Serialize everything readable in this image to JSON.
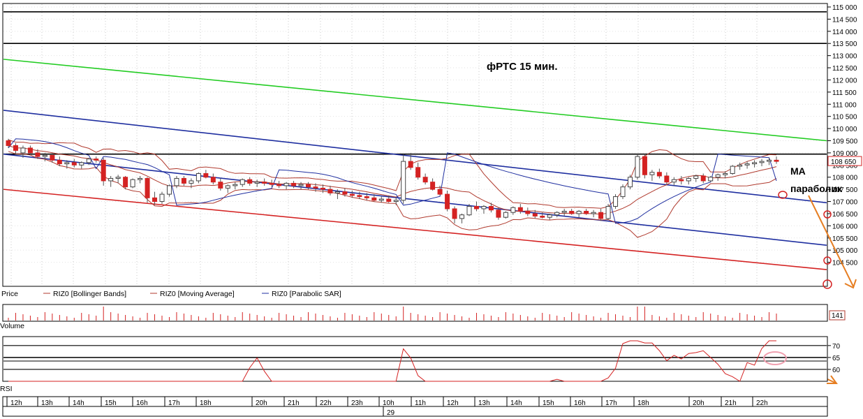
{
  "chart_data": {
    "type": "candlestick",
    "annotation_title": "фРТС   15 мин.",
    "price_axis": {
      "min": 104000,
      "max": 115000,
      "ticks": [
        "115 000",
        "114 500",
        "114 000",
        "113 500",
        "113 000",
        "112 500",
        "112 000",
        "111 500",
        "111 000",
        "110 500",
        "110 000",
        "109 500",
        "109 000",
        "108 500",
        "108 000",
        "107 500",
        "107 000",
        "106 500",
        "106 000",
        "105 500",
        "105 000",
        "104 500"
      ],
      "tick_values": [
        115000,
        114500,
        114000,
        113500,
        113000,
        112500,
        112000,
        111500,
        111000,
        110500,
        110000,
        109500,
        109000,
        108500,
        108000,
        107500,
        107000,
        106500,
        106000,
        105500,
        105000,
        104500
      ],
      "last_price_label": "108 650",
      "last_price": 108650
    },
    "legend": [
      {
        "label": "Price",
        "color": "#000000"
      },
      {
        "label": "RIZ0 [Bollinger Bands]",
        "color": "#b03a2e"
      },
      {
        "label": "RIZ0 [Moving Average]",
        "color": "#b03a2e"
      },
      {
        "label": "RIZ0 [Parabolic SAR]",
        "color": "#1f2fa0"
      }
    ],
    "annotations": {
      "ma": "MA",
      "parabolic": "параболик"
    },
    "volume": {
      "label": "Volume",
      "last_value": "141"
    },
    "rsi": {
      "label": "RSI",
      "ticks": [
        "70",
        "65",
        "60"
      ],
      "tick_values": [
        70,
        65,
        60
      ],
      "range": [
        55,
        72
      ]
    },
    "x_axis": {
      "hours": [
        "12h",
        "13h",
        "14h",
        "15h",
        "16h",
        "17h",
        "18h",
        "20h",
        "21h",
        "22h",
        "23h",
        "10h",
        "11h",
        "12h",
        "13h",
        "14h",
        "15h",
        "16h",
        "17h",
        "18h",
        "20h",
        "21h",
        "22h"
      ],
      "date_label": "29"
    },
    "horizontal_levels": [
      114800,
      113500,
      108950
    ],
    "trendlines": [
      {
        "name": "green",
        "color": "#22cc22",
        "from": 112850,
        "to": 109500
      },
      {
        "name": "blue-upper",
        "color": "#1f2fa0",
        "from": 110750,
        "to": 106950
      },
      {
        "name": "blue-middle",
        "color": "#1f2fa0",
        "from": 108950,
        "to": 105200
      },
      {
        "name": "red-lower",
        "color": "#d42222",
        "from": 107500,
        "to": 104200
      }
    ],
    "candles": [
      [
        109500,
        109580,
        109200,
        109300
      ],
      [
        109300,
        109400,
        108950,
        109100
      ],
      [
        109000,
        109300,
        108800,
        109200
      ],
      [
        109200,
        109300,
        108900,
        109000
      ],
      [
        109000,
        109150,
        108750,
        108850
      ],
      [
        108850,
        109000,
        108650,
        108900
      ],
      [
        108900,
        109000,
        108600,
        108700
      ],
      [
        108700,
        108850,
        108450,
        108550
      ],
      [
        108550,
        108700,
        108350,
        108600
      ],
      [
        108600,
        108750,
        108400,
        108500
      ],
      [
        108500,
        108650,
        108350,
        108600
      ],
      [
        108600,
        108800,
        108500,
        108750
      ],
      [
        108750,
        108850,
        108600,
        108700
      ],
      [
        108700,
        108800,
        107650,
        107850
      ],
      [
        107850,
        108050,
        107600,
        107950
      ],
      [
        107950,
        108100,
        107750,
        108000
      ],
      [
        108000,
        108050,
        107500,
        107600
      ],
      [
        107600,
        107950,
        107550,
        107900
      ],
      [
        107900,
        108050,
        107750,
        107950
      ],
      [
        107950,
        108000,
        106950,
        107150
      ],
      [
        107150,
        107400,
        106850,
        107000
      ],
      [
        107000,
        107400,
        106900,
        107300
      ],
      [
        107300,
        107700,
        107200,
        107650
      ],
      [
        107650,
        108050,
        107550,
        107950
      ],
      [
        107950,
        108050,
        107650,
        107750
      ],
      [
        107750,
        107950,
        107550,
        107850
      ],
      [
        107850,
        108200,
        107750,
        108150
      ],
      [
        108150,
        108300,
        107950,
        108000
      ],
      [
        108000,
        108150,
        107700,
        107800
      ],
      [
        107800,
        107950,
        107450,
        107550
      ],
      [
        107550,
        107700,
        107350,
        107650
      ],
      [
        107650,
        107800,
        107500,
        107700
      ],
      [
        107700,
        107950,
        107600,
        107900
      ],
      [
        107900,
        108000,
        107650,
        107750
      ],
      [
        107750,
        107900,
        107600,
        107800
      ],
      [
        107800,
        107950,
        107650,
        107750
      ],
      [
        107750,
        107900,
        107600,
        107700
      ],
      [
        107700,
        107850,
        107550,
        107650
      ],
      [
        107650,
        107800,
        107500,
        107750
      ],
      [
        107750,
        107850,
        107550,
        107650
      ],
      [
        107650,
        107800,
        107500,
        107700
      ],
      [
        107700,
        107800,
        107500,
        107600
      ],
      [
        107600,
        107750,
        107400,
        107550
      ],
      [
        107550,
        107700,
        107350,
        107500
      ],
      [
        107500,
        107650,
        107250,
        107350
      ],
      [
        107350,
        107500,
        107100,
        107400
      ],
      [
        107400,
        107550,
        107200,
        107300
      ],
      [
        107300,
        107450,
        107150,
        107250
      ],
      [
        107250,
        107400,
        107100,
        107200
      ],
      [
        107200,
        107350,
        107050,
        107150
      ],
      [
        107150,
        107300,
        107000,
        107050
      ],
      [
        107050,
        107200,
        106950,
        107100
      ],
      [
        107100,
        107250,
        106950,
        107000
      ],
      [
        107000,
        107150,
        106850,
        107050
      ],
      [
        107050,
        108950,
        106900,
        108650
      ],
      [
        108650,
        109000,
        108300,
        108400
      ],
      [
        108400,
        108600,
        107900,
        108000
      ],
      [
        108000,
        108150,
        107700,
        107800
      ],
      [
        107800,
        107950,
        107450,
        107500
      ],
      [
        107500,
        107650,
        107250,
        107300
      ],
      [
        107300,
        107450,
        106600,
        106700
      ],
      [
        106700,
        106800,
        106100,
        106300
      ],
      [
        106300,
        106500,
        106100,
        106450
      ],
      [
        106450,
        106900,
        106400,
        106800
      ],
      [
        106800,
        107000,
        106600,
        106700
      ],
      [
        106700,
        106850,
        106500,
        106800
      ],
      [
        106800,
        106950,
        106550,
        106650
      ],
      [
        106650,
        106750,
        106250,
        106350
      ],
      [
        106350,
        106600,
        106300,
        106550
      ],
      [
        106550,
        106800,
        106450,
        106750
      ],
      [
        106750,
        106900,
        106500,
        106600
      ],
      [
        106600,
        106750,
        106400,
        106500
      ],
      [
        106500,
        106650,
        106300,
        106400
      ],
      [
        106400,
        106550,
        106300,
        106350
      ],
      [
        106350,
        106500,
        106250,
        106450
      ],
      [
        106450,
        106600,
        106350,
        106550
      ],
      [
        106550,
        106700,
        106400,
        106600
      ],
      [
        106600,
        106700,
        106450,
        106500
      ],
      [
        106500,
        106650,
        106350,
        106600
      ],
      [
        106600,
        106700,
        106450,
        106500
      ],
      [
        106500,
        106650,
        106350,
        106550
      ],
      [
        106550,
        106700,
        106200,
        106300
      ],
      [
        106300,
        106900,
        106250,
        106800
      ],
      [
        106800,
        107300,
        106700,
        107200
      ],
      [
        107200,
        107700,
        107100,
        107600
      ],
      [
        107600,
        108100,
        107500,
        108000
      ],
      [
        108000,
        108950,
        107900,
        108850
      ],
      [
        108850,
        108950,
        107950,
        108100
      ],
      [
        108100,
        108300,
        107850,
        108200
      ],
      [
        108200,
        108350,
        107950,
        108050
      ],
      [
        108050,
        108200,
        107700,
        107800
      ],
      [
        107800,
        108000,
        107650,
        107900
      ],
      [
        107900,
        108050,
        107700,
        107850
      ],
      [
        107850,
        108000,
        107700,
        107950
      ],
      [
        107950,
        108100,
        107800,
        108050
      ],
      [
        108050,
        108150,
        107750,
        107850
      ],
      [
        107850,
        108050,
        107800,
        108000
      ],
      [
        108000,
        108150,
        107850,
        108100
      ],
      [
        108100,
        108250,
        107950,
        108150
      ],
      [
        108150,
        108500,
        108100,
        108450
      ],
      [
        108450,
        108600,
        108300,
        108500
      ],
      [
        108500,
        108650,
        108350,
        108550
      ],
      [
        108550,
        108700,
        108400,
        108600
      ],
      [
        108600,
        108750,
        108450,
        108650
      ],
      [
        108650,
        108800,
        108500,
        108700
      ],
      [
        108700,
        108850,
        108550,
        108650
      ]
    ]
  }
}
